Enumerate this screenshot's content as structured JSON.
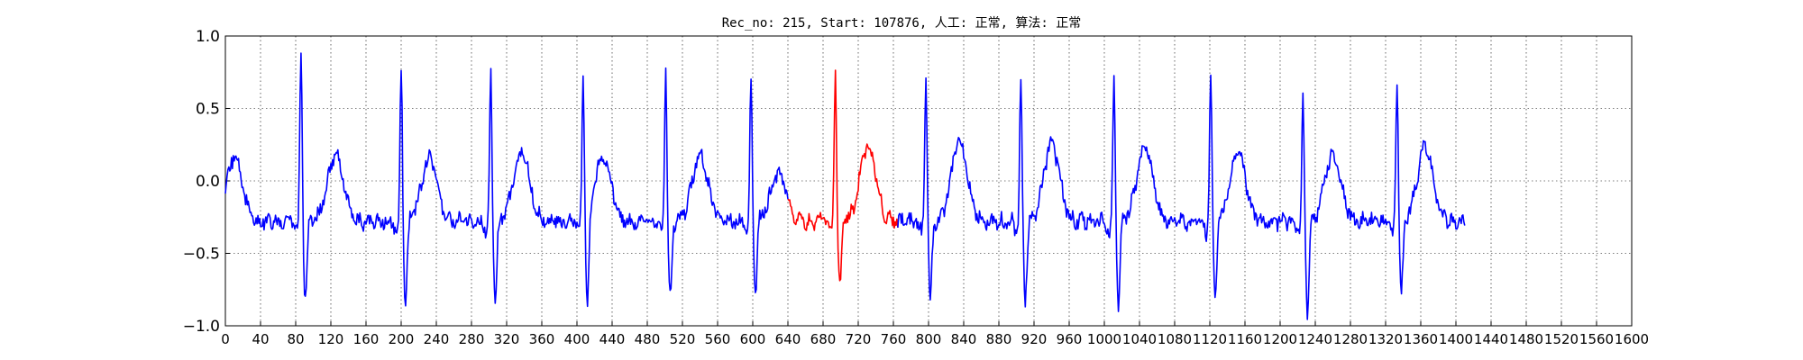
{
  "chart_data": {
    "type": "line",
    "title": "Rec_no: 215, Start: 107876, 人工: 正常, 算法: 正常",
    "xlabel": "",
    "ylabel": "",
    "xlim": [
      0,
      1600
    ],
    "ylim": [
      -1.0,
      1.0
    ],
    "grid": true,
    "y_ticks": [
      1.0,
      0.5,
      0.0,
      -0.5,
      -1.0
    ],
    "y_tick_labels": [
      "1.0",
      "0.5",
      "0.0",
      "−0.5",
      "−1.0"
    ],
    "x_ticks": [
      0,
      40,
      80,
      120,
      160,
      200,
      240,
      280,
      320,
      360,
      400,
      440,
      480,
      520,
      560,
      600,
      640,
      680,
      720,
      760,
      800,
      840,
      880,
      920,
      960,
      1000,
      1040,
      1080,
      1120,
      1160,
      1200,
      1240,
      1280,
      1320,
      1360,
      1400,
      1440,
      1480,
      1520,
      1560,
      1600
    ],
    "x_tick_labels": [
      "0",
      "40",
      "80",
      "120",
      "160",
      "200",
      "240",
      "280",
      "320",
      "360",
      "400",
      "440",
      "480",
      "520",
      "560",
      "600",
      "640",
      "680",
      "720",
      "760",
      "800",
      "840",
      "880",
      "920",
      "960",
      "1000",
      "1040",
      "1080",
      "1120",
      "1160",
      "1200",
      "1240",
      "1280",
      "1320",
      "1360",
      "1400",
      "1440",
      "1480",
      "1520",
      "1560",
      "1600"
    ],
    "colors": {
      "normal": "#0000ff",
      "highlight": "#ff0000"
    },
    "beat_pattern": {
      "baseline": -0.28,
      "r_peaks": [
        {
          "x": 86,
          "r": 0.92,
          "s": -0.92
        },
        {
          "x": 200,
          "r": 0.81,
          "s": -0.93
        },
        {
          "x": 302,
          "r": 0.74,
          "s": -0.93
        },
        {
          "x": 407,
          "r": 0.7,
          "s": -1.0
        },
        {
          "x": 501,
          "r": 0.78,
          "s": -0.92
        },
        {
          "x": 598,
          "r": 0.7,
          "s": -0.88
        },
        {
          "x": 694,
          "r": 0.78,
          "s": -0.84
        },
        {
          "x": 797,
          "r": 0.73,
          "s": -0.92
        },
        {
          "x": 905,
          "r": 0.7,
          "s": -0.92
        },
        {
          "x": 1011,
          "r": 0.75,
          "s": -0.95
        },
        {
          "x": 1121,
          "r": 0.73,
          "s": -0.92
        },
        {
          "x": 1226,
          "r": 0.57,
          "s": -1.0
        },
        {
          "x": 1333,
          "r": 0.66,
          "s": -0.87
        }
      ],
      "t_waves": [
        {
          "x": 10,
          "h": 0.16
        },
        {
          "x": 125,
          "h": 0.18
        },
        {
          "x": 232,
          "h": 0.15
        },
        {
          "x": 337,
          "h": 0.2
        },
        {
          "x": 430,
          "h": 0.17
        },
        {
          "x": 540,
          "h": 0.18
        },
        {
          "x": 629,
          "h": 0.04
        },
        {
          "x": 731,
          "h": 0.24
        },
        {
          "x": 835,
          "h": 0.27
        },
        {
          "x": 940,
          "h": 0.25
        },
        {
          "x": 1046,
          "h": 0.23
        },
        {
          "x": 1152,
          "h": 0.18
        },
        {
          "x": 1260,
          "h": 0.18
        },
        {
          "x": 1365,
          "h": 0.23
        }
      ]
    },
    "series": [
      {
        "color": "#0000ff",
        "x_range": [
          0,
          640
        ]
      },
      {
        "color": "#ff0000",
        "x_range": [
          640,
          765
        ]
      },
      {
        "color": "#0000ff",
        "x_range": [
          765,
          1410
        ]
      }
    ]
  }
}
